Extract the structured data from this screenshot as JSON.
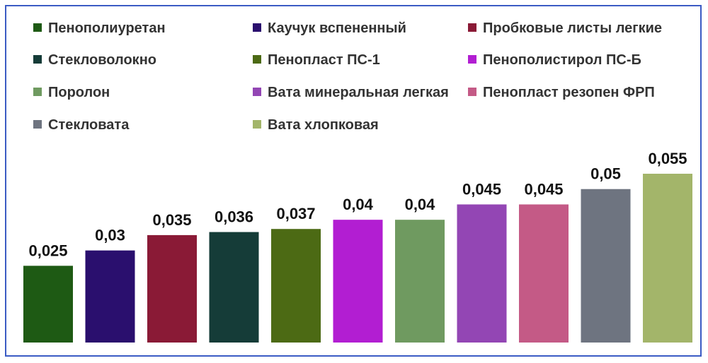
{
  "chart_data": {
    "type": "bar",
    "title": "",
    "xlabel": "",
    "ylabel": "",
    "categories": [
      "Пенополиуретан",
      "Каучук вспененный",
      "Пробковые листы легкие",
      "Стекловолокно",
      "Пенопласт ПС-1",
      "Пенополистирол ПС-Б",
      "Поролон",
      "Вата минеральная легкая",
      "Пенопласт резопен ФРП",
      "Стекловата",
      "Вата хлопковая"
    ],
    "values": [
      0.025,
      0.03,
      0.035,
      0.036,
      0.037,
      0.04,
      0.04,
      0.045,
      0.045,
      0.05,
      0.055
    ],
    "value_labels": [
      "0,025",
      "0,03",
      "0,035",
      "0,036",
      "0,037",
      "0,04",
      "0,04",
      "0,045",
      "0,045",
      "0,05",
      "0,055"
    ],
    "colors": [
      "#1e5a14",
      "#2a0f6e",
      "#8a1a36",
      "#153c38",
      "#4c6a14",
      "#b21ed2",
      "#6f9a60",
      "#9346b4",
      "#c45a86",
      "#6e7480",
      "#a3b56a"
    ],
    "ylim": [
      0,
      0.055
    ],
    "grid": false,
    "legend": "top"
  }
}
